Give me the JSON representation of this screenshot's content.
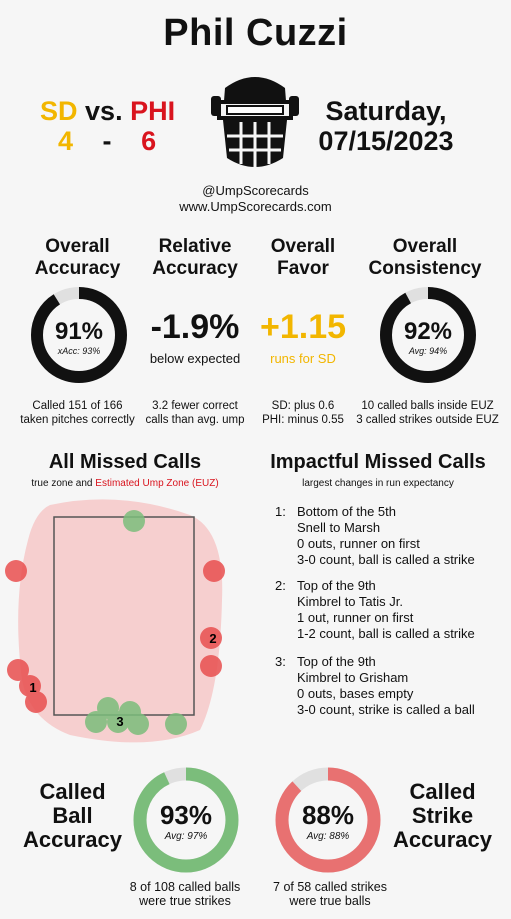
{
  "title": "Phil Cuzzi",
  "game": {
    "away_team": "SD",
    "vs": "vs.",
    "home_team": "PHI",
    "away_score": "4",
    "dash": "-",
    "home_score": "6",
    "date_line1": "Saturday,",
    "date_line2": "07/15/2023"
  },
  "handle": "@UmpScorecards",
  "website": "www.UmpScorecards.com",
  "stats": {
    "accuracy": {
      "h1": "Overall",
      "h2": "Accuracy",
      "value": "91%",
      "sub": "xAcc: 93%",
      "fraction": 0.91,
      "note1": "Called 151 of 166",
      "note2": "taken pitches correctly"
    },
    "relative": {
      "h1": "Relative",
      "h2": "Accuracy",
      "value": "-1.9%",
      "sub": "below expected",
      "note1": "3.2 fewer correct",
      "note2": "calls than avg. ump"
    },
    "favor": {
      "h1": "Overall",
      "h2": "Favor",
      "value": "+1.15",
      "sub": "runs for SD",
      "note1": "SD: plus 0.6",
      "note2": "PHI: minus 0.55"
    },
    "consistency": {
      "h1": "Overall",
      "h2": "Consistency",
      "value": "92%",
      "sub": "Avg: 94%",
      "fraction": 0.92,
      "note1": "10 called balls inside EUZ",
      "note2": "3 called strikes outside EUZ"
    }
  },
  "missed": {
    "title": "All Missed Calls",
    "legend_true": "true zone and",
    "legend_euz": "Estimated Ump Zone (EUZ)"
  },
  "impactful": {
    "title": "Impactful Missed Calls",
    "subtitle": "largest changes in run expectancy",
    "items": [
      {
        "num": "1:",
        "l1": "Bottom of the 5th",
        "l2": "Snell to Marsh",
        "l3": "0 outs, runner on first",
        "l4": "3-0 count, ball is called a strike"
      },
      {
        "num": "2:",
        "l1": "Top of the 9th",
        "l2": "Kimbrel to Tatis Jr.",
        "l3": "1 out, runner on first",
        "l4": "1-2 count, ball is called a strike"
      },
      {
        "num": "3:",
        "l1": "Top of the 9th",
        "l2": "Kimbrel to Grisham",
        "l3": "0 outs, bases empty",
        "l4": "3-0 count, strike is called a ball"
      }
    ]
  },
  "pitch_labels": [
    "1",
    "2",
    "3"
  ],
  "called_ball": {
    "h1": "Called",
    "h2": "Ball",
    "h3": "Accuracy",
    "value": "93%",
    "sub": "Avg: 97%",
    "fraction": 0.93,
    "note1": "8 of 108 called balls",
    "note2": "were true strikes"
  },
  "called_strike": {
    "h1": "Called",
    "h2": "Strike",
    "h3": "Accuracy",
    "value": "88%",
    "sub": "Avg: 88%",
    "fraction": 0.88,
    "note1": "7 of 58 called strikes",
    "note2": "were true balls"
  },
  "colors": {
    "sd": "#f2b600",
    "phi": "#d9141e",
    "ball_green": "#7bbd7b",
    "strike_red": "#e87171",
    "euz_pink": "#f6cfcf",
    "ring_bg": "#e0e0e0",
    "ring": "#111111"
  }
}
